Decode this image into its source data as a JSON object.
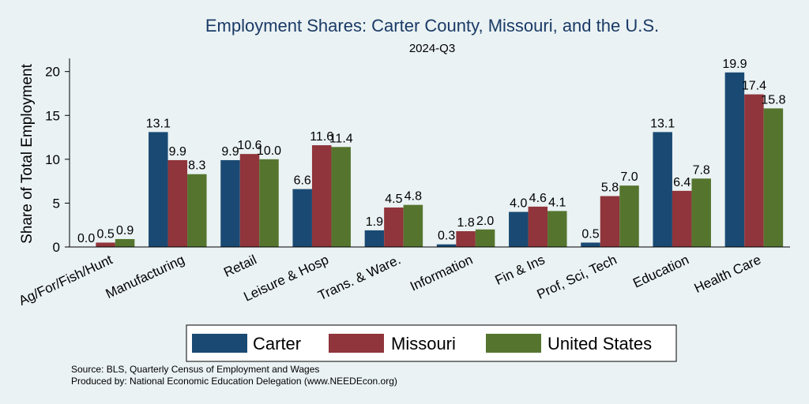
{
  "chart_data": {
    "type": "bar",
    "title": "Employment Shares: Carter County, Missouri, and the U.S.",
    "subtitle": "2024-Q3",
    "xlabel": "",
    "ylabel": "Share of Total Employment",
    "ylim": [
      0,
      21.5
    ],
    "yticks": [
      0,
      5,
      10,
      15,
      20
    ],
    "grid": false,
    "legend_position": "bottom",
    "categories": [
      "Ag/For/Fish/Hunt",
      "Manufacturing",
      "Retail",
      "Leisure & Hosp",
      "Trans. & Ware.",
      "Information",
      "Fin & Ins",
      "Prof, Sci, Tech",
      "Education",
      "Health Care"
    ],
    "series": [
      {
        "name": "Carter",
        "color": "#1a4a74",
        "values": [
          0.0,
          13.1,
          9.9,
          6.6,
          1.9,
          0.3,
          4.0,
          0.5,
          13.1,
          19.9
        ],
        "labels": [
          "0.0",
          "13.1",
          "9.9",
          "6.6",
          "1.9",
          "0.3",
          "4.0",
          "0.5",
          "13.1",
          "19.9"
        ]
      },
      {
        "name": "Missouri",
        "color": "#90353b",
        "values": [
          0.5,
          9.9,
          10.6,
          11.6,
          4.5,
          1.8,
          4.6,
          5.8,
          6.4,
          17.4
        ],
        "labels": [
          "0.5",
          "9.9",
          "10.6",
          "11.6",
          "4.5",
          "1.8",
          "4.6",
          "5.8",
          "6.4",
          "17.4"
        ]
      },
      {
        "name": "United States",
        "color": "#55752f",
        "values": [
          0.9,
          8.3,
          10.0,
          11.4,
          4.8,
          2.0,
          4.1,
          7.0,
          7.8,
          15.8
        ],
        "labels": [
          "0.9",
          "8.3",
          "10.0",
          "11.4",
          "4.8",
          "2.0",
          "4.1",
          "7.0",
          "7.8",
          "15.8"
        ]
      }
    ],
    "notes": [
      "Source: BLS, Quarterly Census of Employment and Wages",
      "Produced by: National Economic Education Delegation (www.NEEDEcon.org)"
    ]
  }
}
